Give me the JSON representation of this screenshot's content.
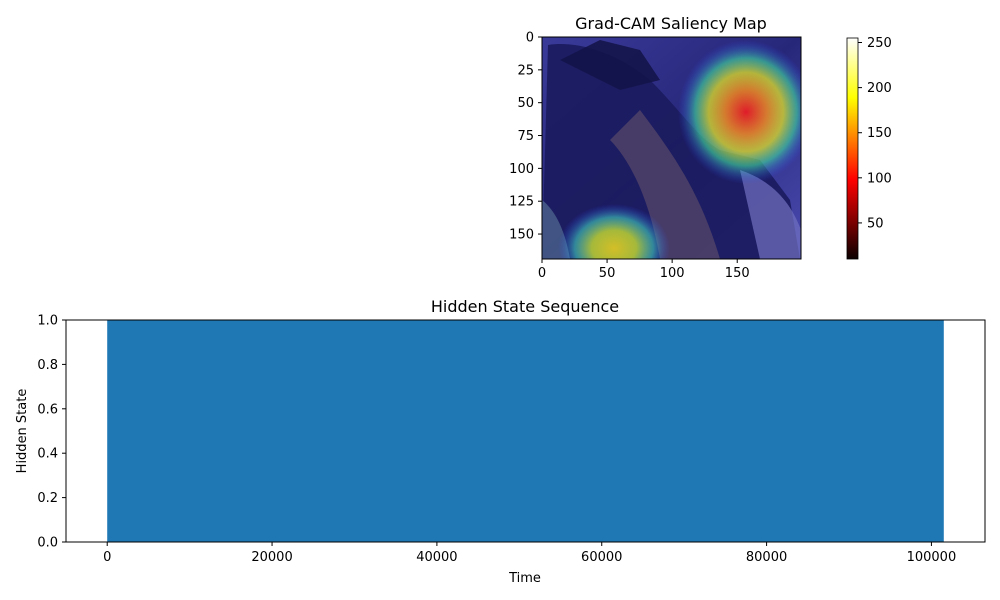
{
  "chart_data": [
    {
      "type": "heatmap",
      "title": "Grad-CAM Saliency Map",
      "xlabel": "",
      "ylabel": "",
      "xlim": [
        0,
        199
      ],
      "ylim": [
        169,
        0
      ],
      "xticks": [
        0,
        50,
        100,
        150
      ],
      "yticks": [
        0,
        25,
        50,
        75,
        100,
        125,
        150
      ],
      "colorbar": {
        "colormap": "hot",
        "range": [
          10,
          255
        ],
        "ticks": [
          50,
          100,
          150,
          200,
          250
        ]
      },
      "hotspots": [
        {
          "x": 157,
          "y": 60,
          "intensity": 1.0
        },
        {
          "x": 57,
          "y": 163,
          "intensity": 0.8
        }
      ]
    },
    {
      "type": "area",
      "title": "Hidden State Sequence",
      "xlabel": "Time",
      "ylabel": "Hidden State",
      "xlim": [
        -5000,
        106500
      ],
      "ylim": [
        0,
        1
      ],
      "xticks": [
        0,
        20000,
        40000,
        60000,
        80000,
        100000
      ],
      "yticks": [
        0.0,
        0.2,
        0.4,
        0.6,
        0.8,
        1.0
      ],
      "x": [
        0,
        101500
      ],
      "y": [
        1,
        1
      ],
      "color": "#1f77b4"
    }
  ]
}
